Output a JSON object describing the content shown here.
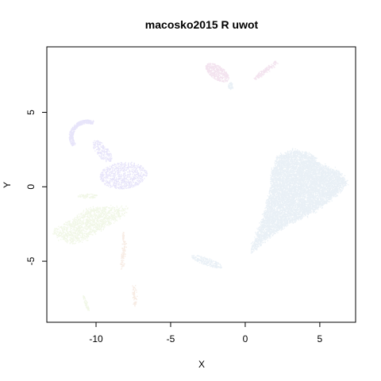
{
  "chart_data": {
    "type": "scatter",
    "title": "macosko2015 R uwot",
    "xlabel": "X",
    "ylabel": "Y",
    "xlim": [
      -13.3,
      7.4
    ],
    "ylim": [
      -9.1,
      9.4
    ],
    "xticks": [
      -10,
      -5,
      0,
      5
    ],
    "yticks": [
      -5,
      0,
      5
    ],
    "grid": false,
    "legend": "none",
    "point_opacity": 0.12,
    "series": [
      {
        "color": "#4682b4",
        "clusters": [
          {
            "shape": "polygon",
            "n": 9000,
            "vertices": [
              [
                0.3,
                -4.4
              ],
              [
                1.5,
                -3.4
              ],
              [
                2.8,
                -2.5
              ],
              [
                4.6,
                -1.6
              ],
              [
                6.0,
                -0.6
              ],
              [
                6.8,
                0.3
              ],
              [
                6.3,
                1.0
              ],
              [
                5.0,
                1.5
              ],
              [
                4.4,
                2.2
              ],
              [
                3.3,
                2.5
              ],
              [
                2.2,
                2.1
              ],
              [
                1.8,
                1.0
              ],
              [
                1.6,
                -0.6
              ],
              [
                1.2,
                -2.0
              ]
            ]
          },
          {
            "shape": "ellipse",
            "n": 220,
            "center": [
              -2.6,
              -5.0
            ],
            "radius": [
              0.25,
              1.1
            ],
            "angle_deg": 70
          },
          {
            "shape": "ellipse",
            "n": 60,
            "center": [
              -1.0,
              6.8
            ],
            "radius": [
              0.18,
              0.25
            ],
            "angle_deg": 0
          }
        ]
      },
      {
        "color": "#3a1fd6",
        "clusters": [
          {
            "shape": "ellipse",
            "n": 700,
            "center": [
              -8.2,
              0.8
            ],
            "radius": [
              0.9,
              1.6
            ],
            "angle_deg": 95
          },
          {
            "shape": "arc",
            "n": 420,
            "center": [
              -10.6,
              3.4
            ],
            "radius": [
              1.1,
              1.0
            ],
            "from_deg": 70,
            "to_deg": 215,
            "thickness": 0.25
          },
          {
            "shape": "ellipse",
            "n": 200,
            "center": [
              -9.6,
              2.4
            ],
            "radius": [
              0.4,
              0.9
            ],
            "angle_deg": 40
          }
        ]
      },
      {
        "color": "#8fbc3a",
        "clusters": [
          {
            "shape": "polygon",
            "n": 1300,
            "vertices": [
              [
                -12.8,
                -2.9
              ],
              [
                -11.6,
                -2.2
              ],
              [
                -10.5,
                -1.4
              ],
              [
                -9.2,
                -1.3
              ],
              [
                -8.0,
                -1.4
              ],
              [
                -8.2,
                -1.9
              ],
              [
                -9.3,
                -2.6
              ],
              [
                -10.6,
                -3.4
              ],
              [
                -11.7,
                -3.8
              ],
              [
                -12.9,
                -3.2
              ]
            ]
          },
          {
            "shape": "ellipse",
            "n": 80,
            "center": [
              -10.6,
              -0.6
            ],
            "radius": [
              0.7,
              0.15
            ],
            "angle_deg": 0
          },
          {
            "shape": "ellipse",
            "n": 60,
            "center": [
              -10.7,
              -7.8
            ],
            "radius": [
              0.1,
              0.55
            ],
            "angle_deg": 20
          }
        ]
      },
      {
        "color": "#9b1a7a",
        "clusters": [
          {
            "shape": "ellipse",
            "n": 450,
            "center": [
              -1.9,
              7.7
            ],
            "radius": [
              0.45,
              0.9
            ],
            "angle_deg": 55
          },
          {
            "shape": "line",
            "n": 140,
            "from": [
              0.6,
              7.3
            ],
            "to": [
              2.1,
              8.4
            ],
            "width": 0.08
          }
        ]
      },
      {
        "color": "#c0581a",
        "clusters": [
          {
            "shape": "line",
            "n": 90,
            "from": [
              -8.3,
              -5.4
            ],
            "to": [
              -8.1,
              -3.6
            ],
            "width": 0.07
          },
          {
            "shape": "line",
            "n": 70,
            "from": [
              -7.5,
              -6.6
            ],
            "to": [
              -7.4,
              -7.9
            ],
            "width": 0.06
          },
          {
            "shape": "ellipse",
            "n": 30,
            "center": [
              -8.2,
              -3.3
            ],
            "radius": [
              0.06,
              0.3
            ],
            "angle_deg": 0
          }
        ]
      }
    ]
  }
}
